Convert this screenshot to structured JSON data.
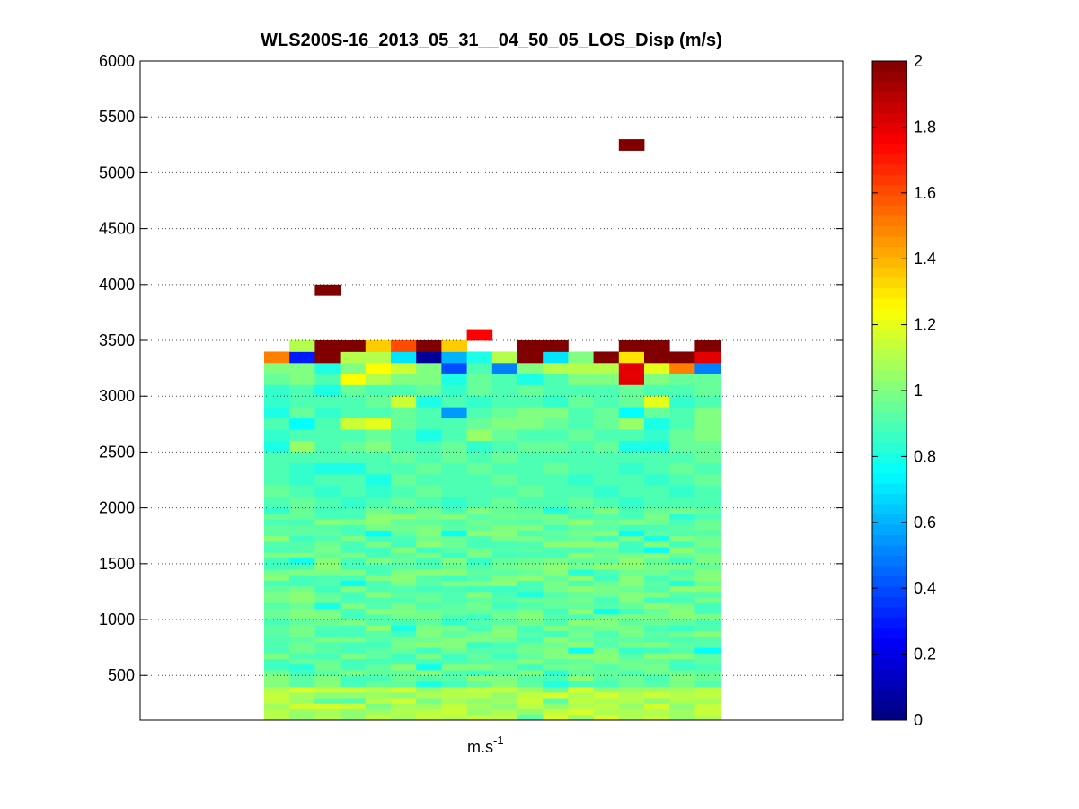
{
  "chart_data": {
    "type": "heatmap",
    "title": "WLS200S-16_2013_05_31__04_50_05_LOS_Disp (m/s)",
    "xlabel": "m.s",
    "xlabel_superscript": "-1",
    "ylabel": "",
    "y_ticks": [
      "500",
      "1000",
      "1500",
      "2000",
      "2500",
      "3000",
      "3500",
      "4000",
      "4500",
      "5000",
      "5500",
      "6000"
    ],
    "ylim": [
      100,
      6000
    ],
    "grid": "y dotted",
    "colorbar": {
      "colormap": "jet",
      "range": [
        0,
        2
      ],
      "ticks": [
        "0",
        "0.2",
        "0.4",
        "0.6",
        "0.8",
        "1",
        "1.2",
        "1.4",
        "1.6",
        "1.8",
        "2"
      ],
      "location": "right"
    },
    "columns": 18,
    "row_altitude_step": 50,
    "bulk_altitude_range": [
      100,
      3200
    ],
    "upper_rows": [
      {
        "y": 3350,
        "values": [
          1.5,
          0.3,
          2.0,
          1.1,
          1.1,
          0.7,
          0.05,
          0.6,
          0.8,
          1.1,
          2.0,
          0.7,
          1.0,
          2.0,
          1.3,
          2.0,
          2.0,
          1.8
        ]
      },
      {
        "y": 3450,
        "values": [
          null,
          1.1,
          2.0,
          2.0,
          1.35,
          1.6,
          2.0,
          1.35,
          null,
          null,
          2.0,
          2.0,
          null,
          null,
          2.0,
          2.0,
          null,
          2.0
        ]
      },
      {
        "y": 3550,
        "values": [
          null,
          null,
          null,
          null,
          null,
          null,
          null,
          null,
          1.75,
          null,
          null,
          null,
          null,
          null,
          null,
          null,
          null,
          null
        ]
      },
      {
        "y": 3950,
        "values": [
          null,
          null,
          2.0,
          null,
          null,
          null,
          null,
          null,
          null,
          null,
          null,
          null,
          null,
          null,
          null,
          null,
          null,
          null
        ]
      },
      {
        "y": 5250,
        "values": [
          null,
          null,
          null,
          null,
          null,
          null,
          null,
          null,
          null,
          null,
          null,
          null,
          null,
          null,
          2.0,
          null,
          null,
          null
        ]
      }
    ],
    "bulk_rows_top_down": [
      {
        "y": 3250,
        "values": [
          1.0,
          1.0,
          0.8,
          1.0,
          1.25,
          1.15,
          1.0,
          0.4,
          0.9,
          0.5,
          1.0,
          1.1,
          1.1,
          1.1,
          1.8,
          1.2,
          1.5,
          0.5
        ]
      },
      {
        "y": 3150,
        "values": [
          0.95,
          1.0,
          0.9,
          1.25,
          1.1,
          1.0,
          1.0,
          0.8,
          0.95,
          0.9,
          0.8,
          0.9,
          1.0,
          1.0,
          1.8,
          1.0,
          0.95,
          0.95
        ]
      },
      {
        "y": 3050,
        "values": [
          0.85,
          0.9,
          0.8,
          0.95,
          0.9,
          0.9,
          0.95,
          0.85,
          0.95,
          0.9,
          0.95,
          0.9,
          0.9,
          0.9,
          0.95,
          0.9,
          0.9,
          0.95
        ]
      },
      {
        "y": 2950,
        "values": [
          0.85,
          0.9,
          0.9,
          0.9,
          0.95,
          1.15,
          0.8,
          0.9,
          0.85,
          0.9,
          0.9,
          0.85,
          0.95,
          0.9,
          0.95,
          1.2,
          0.85,
          0.9
        ]
      },
      {
        "y": 2850,
        "values": [
          0.8,
          0.95,
          0.85,
          0.9,
          0.9,
          0.95,
          0.9,
          0.55,
          0.9,
          0.95,
          1.0,
          1.0,
          0.9,
          0.95,
          0.75,
          0.95,
          0.9,
          1.0
        ]
      },
      {
        "y": 2750,
        "values": [
          0.9,
          0.75,
          0.9,
          1.15,
          1.2,
          0.95,
          0.9,
          0.9,
          0.95,
          1.0,
          1.0,
          0.95,
          0.9,
          0.95,
          1.05,
          0.8,
          0.9,
          1.0
        ]
      },
      {
        "y": 2650,
        "values": [
          0.85,
          0.9,
          0.9,
          0.9,
          0.95,
          0.9,
          0.8,
          0.9,
          1.05,
          0.95,
          0.9,
          0.9,
          0.95,
          0.9,
          0.9,
          0.85,
          0.95,
          1.0
        ]
      },
      {
        "y": 2550,
        "values": [
          0.8,
          1.05,
          0.9,
          0.95,
          1.0,
          0.9,
          0.9,
          0.95,
          0.85,
          0.9,
          0.95,
          0.95,
          0.9,
          0.95,
          0.8,
          0.8,
          0.95,
          0.95
        ]
      },
      {
        "y": 2450,
        "values": [
          0.9,
          0.9,
          0.9,
          0.9,
          0.9,
          0.95,
          0.9,
          0.95,
          0.9,
          0.95,
          0.9,
          0.9,
          0.9,
          0.9,
          0.9,
          0.9,
          0.9,
          0.95
        ]
      },
      {
        "y": 2350,
        "values": [
          0.9,
          0.85,
          0.8,
          0.8,
          0.9,
          0.9,
          0.95,
          0.9,
          0.95,
          0.9,
          0.9,
          0.95,
          0.9,
          0.9,
          0.85,
          0.9,
          0.95,
          0.9
        ]
      },
      {
        "y": 2250,
        "values": [
          0.9,
          0.85,
          0.9,
          0.9,
          0.8,
          0.95,
          0.9,
          0.9,
          0.9,
          0.95,
          0.9,
          0.9,
          0.85,
          0.9,
          0.9,
          0.85,
          0.9,
          0.95
        ]
      },
      {
        "y": 2150,
        "values": [
          0.95,
          0.9,
          0.85,
          0.9,
          0.85,
          0.9,
          0.95,
          0.9,
          0.9,
          0.9,
          0.95,
          0.9,
          0.9,
          0.85,
          0.9,
          0.9,
          0.85,
          0.9
        ]
      },
      {
        "y": 2050,
        "values": [
          0.9,
          0.95,
          0.9,
          0.85,
          0.9,
          0.95,
          0.9,
          0.85,
          0.9,
          0.95,
          0.9,
          0.9,
          0.95,
          0.9,
          0.85,
          0.9,
          0.9,
          0.9
        ]
      }
    ],
    "bulk_rows_lower": {
      "y_from": 2000,
      "y_to": 100,
      "base_value": 0.95,
      "near_ground_value": 1.1,
      "near_ground_below": 400
    }
  }
}
